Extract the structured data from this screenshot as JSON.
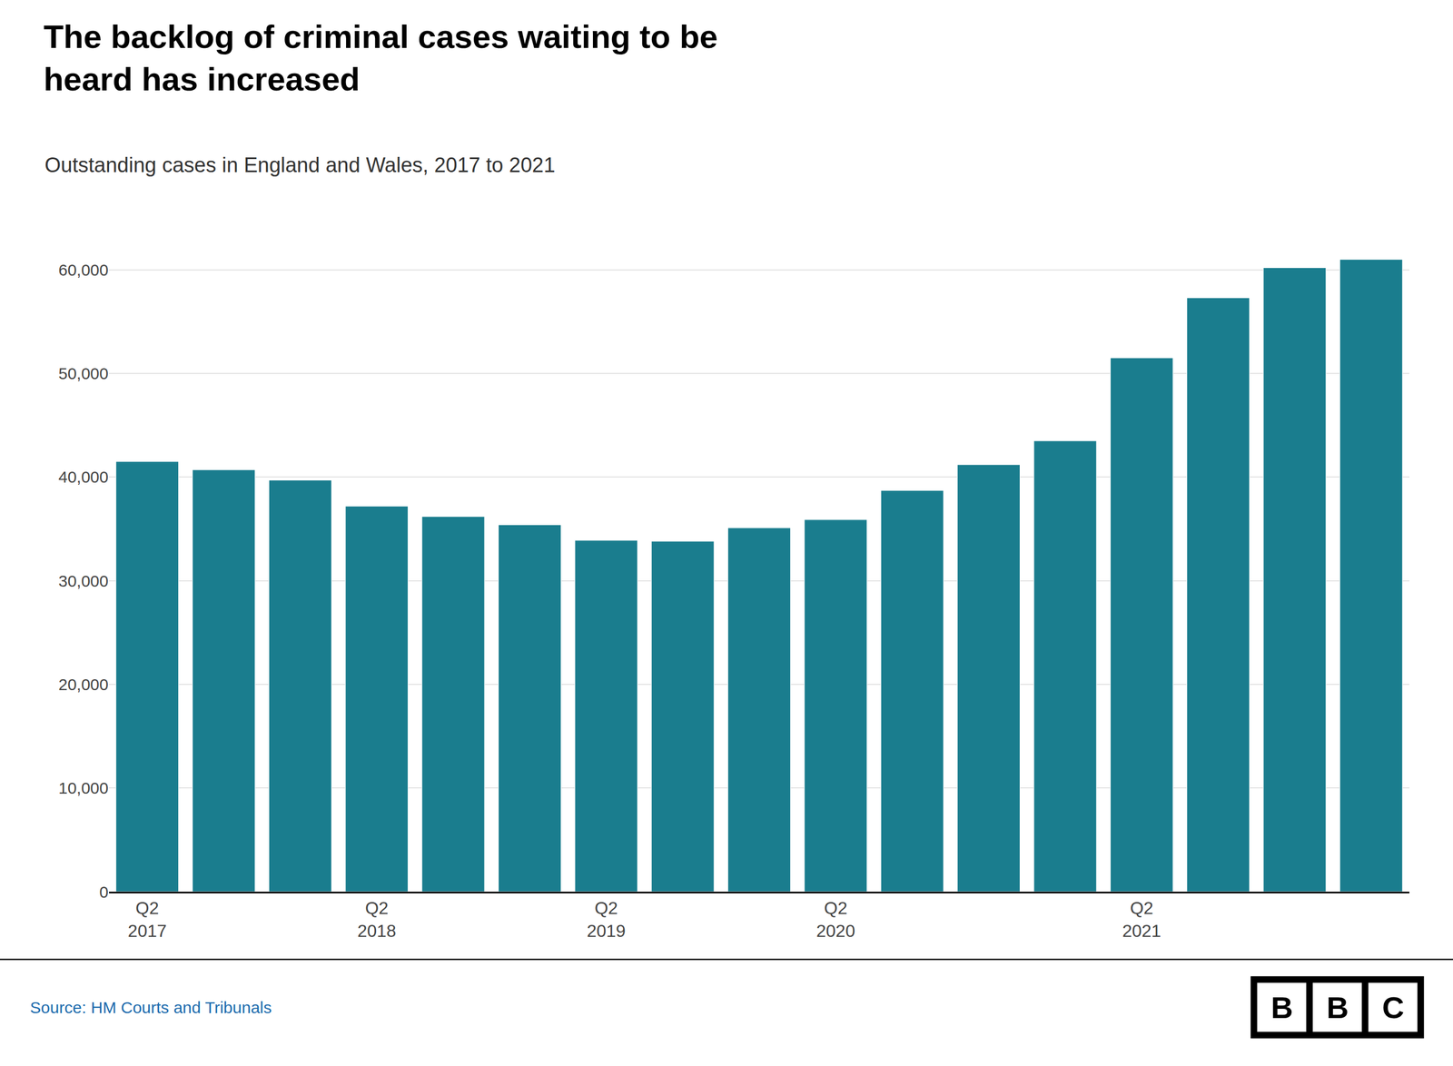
{
  "chart_data": {
    "type": "bar",
    "title": "The backlog of criminal cases waiting to be\nheard has increased",
    "subtitle": "Outstanding cases in England and Wales, 2017 to 2021",
    "source": "Source: HM Courts and Tribunals",
    "logo": "BBC",
    "categories": [
      "Q2\n2017",
      null,
      null,
      "Q2\n2018",
      null,
      null,
      "Q2\n2019",
      null,
      null,
      "Q2\n2020",
      null,
      null,
      null,
      "Q2\n2021",
      null,
      null,
      null
    ],
    "values": [
      41500,
      40700,
      39700,
      37200,
      36200,
      35400,
      33900,
      33800,
      35100,
      35900,
      38700,
      41200,
      43500,
      51500,
      57300,
      60200,
      61000
    ],
    "color": "#1a7d8e",
    "ylim": [
      0,
      65000
    ],
    "yticks": [
      0,
      {
        "value": 10000,
        "label": "10,000"
      },
      {
        "value": 20000,
        "label": "20,000"
      },
      {
        "value": 30000,
        "label": "30,000"
      },
      {
        "value": 40000,
        "label": "40,000"
      },
      {
        "value": 50000,
        "label": "50,000"
      },
      {
        "value": 60000,
        "label": "60,000"
      }
    ],
    "grid": true
  }
}
